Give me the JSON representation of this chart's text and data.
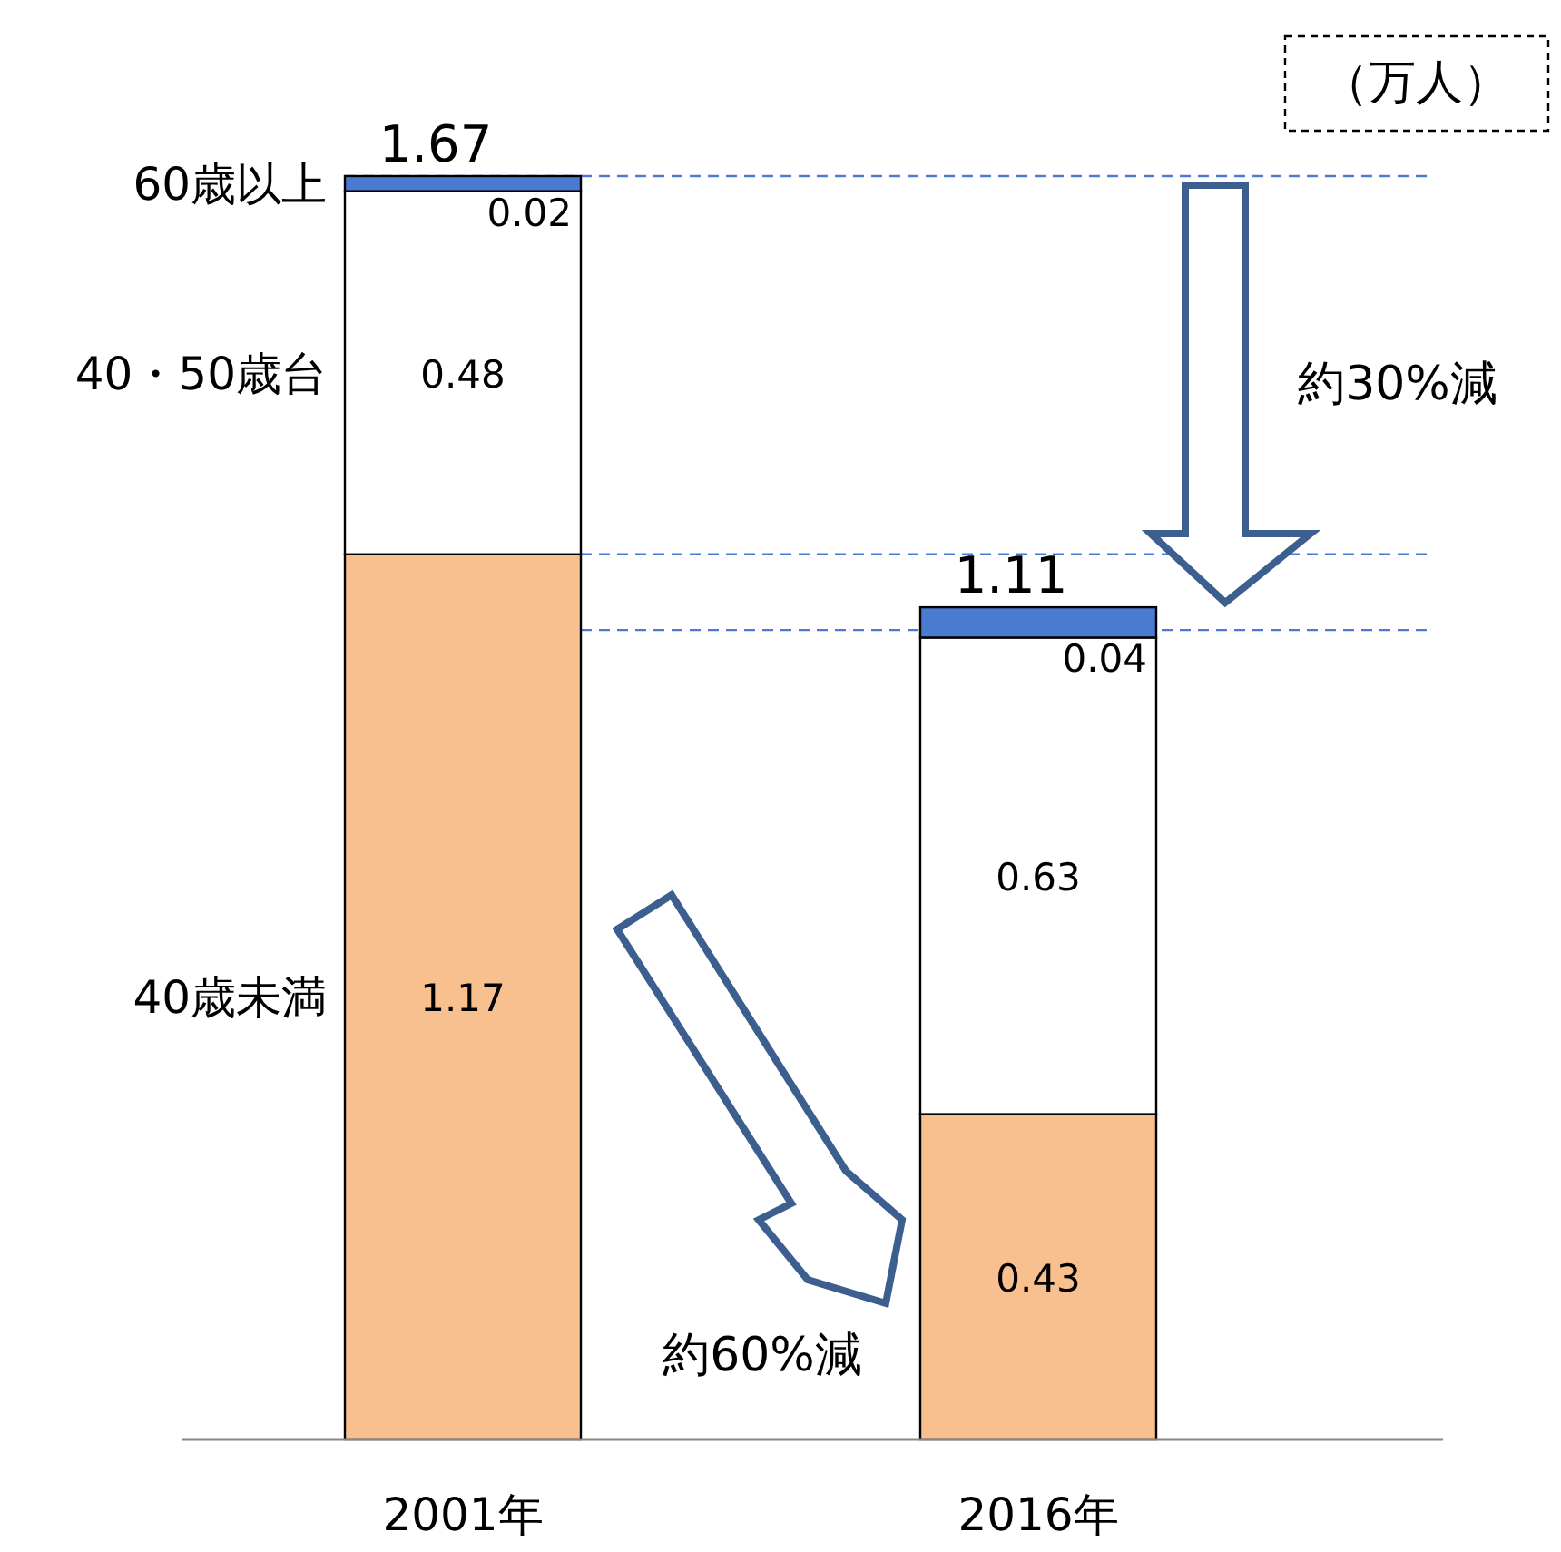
{
  "chart_data": {
    "type": "bar",
    "stacked": true,
    "categories": [
      "2001年",
      "2016年"
    ],
    "series": [
      {
        "name": "40歳未満",
        "color": "#f8c08f",
        "values": [
          1.17,
          0.43
        ]
      },
      {
        "name": "40・50歳台",
        "color": "#ffffff",
        "values": [
          0.48,
          0.63
        ]
      },
      {
        "name": "60歳以上",
        "color": "#4a7bd0",
        "values": [
          0.02,
          0.04
        ]
      }
    ],
    "data_labels": true,
    "totals": [
      "1.67",
      "1.11"
    ],
    "tick_labels": "x",
    "ref_lines": [
      {
        "axis": "y",
        "value": 1.67,
        "color": "#4a7bd0",
        "line_style": "dashed"
      },
      {
        "axis": "y",
        "value": 1.17,
        "color": "#4a7bd0",
        "line_style": "dashed"
      },
      {
        "axis": "y",
        "value": 1.07,
        "color": "#4a7bd0",
        "line_style": "dashed"
      }
    ],
    "annotations": [
      "（万人）",
      "約30%減",
      "約60%減"
    ]
  }
}
